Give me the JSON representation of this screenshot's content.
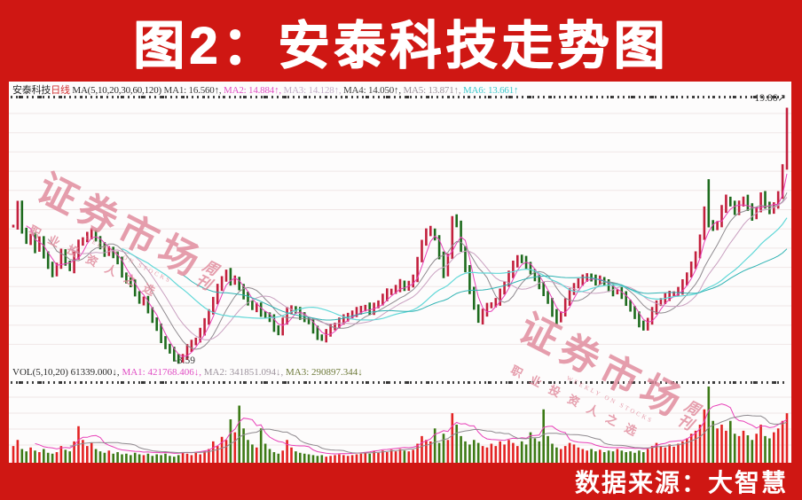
{
  "title": {
    "text": "图2：安泰科技走势图"
  },
  "source": {
    "text": "数据来源：大智慧"
  },
  "price_labels": {
    "high": "19.86↗",
    "low": "-3.59"
  },
  "watermark": {
    "main": "证券市场",
    "sub_top": "周",
    "sub_bottom": "刊",
    "eng": "WEEKLY ON STOCKS",
    "tagline": "职业投资人之选"
  },
  "indicator_header": {
    "symbol": "安泰科技",
    "period": "日线",
    "ma_label": "MA(5,10,20,30,60,120)",
    "mas": [
      {
        "name": "MA1",
        "value": "16.560",
        "dir": "↑",
        "color": "#3c3c3c"
      },
      {
        "name": "MA2",
        "value": "14.884",
        "dir": "↑",
        "color": "#e04ec4"
      },
      {
        "name": "MA3",
        "value": "14.128",
        "dir": "↑",
        "color": "#c2aec8"
      },
      {
        "name": "MA4",
        "value": "14.050",
        "dir": "↑",
        "color": "#3c3c3c"
      },
      {
        "name": "MA5",
        "value": "13.871",
        "dir": "↑",
        "color": "#9c929c"
      },
      {
        "name": "MA6",
        "value": "13.661",
        "dir": "↑",
        "color": "#3cc8cc"
      }
    ]
  },
  "volume_header": {
    "label": "VOL(5,10,20)",
    "value": "61339.000",
    "dir": "↓",
    "mas": [
      {
        "name": "MA1",
        "value": "421768.406",
        "dir": "↓",
        "color": "#e04ec4"
      },
      {
        "name": "MA2",
        "value": "341851.094",
        "dir": "↓",
        "color": "#9c929c"
      },
      {
        "name": "MA3",
        "value": "290897.344",
        "dir": "↓",
        "color": "#6e7a3a"
      }
    ]
  },
  "colors": {
    "frame_red": "#cf1713",
    "candle_up": "#c3203e",
    "candle_down": "#1e6b1e",
    "vol_up": "#e32222",
    "vol_down": "#3d7a16",
    "grid": "#f0e6e6",
    "ma_fast": "#e840b8",
    "ma_mid": "#8f8a8f",
    "ma_light": "#c9a0c0",
    "ma_cyan": "#62d8d8",
    "ma_cyan2": "#2fb3b3",
    "watermark_pink": "#e0899b"
  },
  "chart_data": {
    "type": "candlestick_with_volume",
    "title": "安泰科技走势图 (日线)",
    "high": 19.86,
    "low": 3.59,
    "ylim_price": [
      3.3,
      20.4
    ],
    "indicator_values": {
      "MA1": 16.56,
      "MA2": 14.884,
      "MA3": 14.128,
      "MA4": 14.05,
      "MA5": 13.871,
      "MA6": 13.661
    },
    "volume_values": {
      "VOL": 61339.0,
      "MA1": 421768.406,
      "MA2": 341851.094,
      "MA3": 290897.344
    },
    "closes": [
      12.29,
      13.65,
      12.05,
      11.28,
      11.58,
      10.81,
      11.46,
      10.39,
      9.8,
      9.21,
      9.8,
      10.57,
      9.98,
      9.51,
      10.39,
      11.16,
      11.46,
      11.69,
      11.87,
      11.46,
      10.98,
      10.57,
      10.81,
      10.39,
      10.1,
      9.21,
      8.74,
      8.62,
      8.03,
      7.44,
      7.55,
      6.96,
      6.25,
      5.78,
      5.07,
      4.6,
      4.3,
      3.89,
      3.71,
      4.0,
      4.48,
      4.77,
      5.07,
      5.54,
      6.13,
      6.84,
      7.55,
      8.32,
      8.91,
      9.33,
      8.74,
      8.91,
      8.32,
      7.85,
      7.44,
      7.02,
      7.14,
      6.73,
      6.55,
      6.37,
      5.78,
      5.48,
      6.25,
      6.84,
      7.02,
      6.84,
      6.55,
      6.37,
      6.13,
      5.66,
      5.25,
      5.07,
      5.48,
      5.78,
      5.96,
      6.25,
      6.37,
      6.55,
      6.73,
      6.84,
      6.96,
      7.14,
      6.84,
      7.14,
      7.44,
      7.73,
      8.03,
      8.15,
      8.32,
      8.62,
      8.32,
      8.62,
      8.91,
      10.1,
      11.28,
      11.87,
      12.05,
      11.46,
      10.39,
      9.21,
      10.39,
      12.76,
      12.46,
      10.81,
      9.51,
      8.2,
      7.14,
      6.25,
      6.73,
      7.14,
      7.32,
      7.44,
      8.03,
      8.62,
      9.21,
      9.8,
      10.27,
      10.1,
      9.8,
      9.39,
      8.91,
      8.5,
      8.03,
      7.44,
      6.73,
      6.25,
      6.73,
      7.44,
      8.03,
      8.5,
      8.74,
      8.91,
      9.09,
      8.91,
      8.74,
      8.91,
      8.62,
      8.32,
      8.03,
      8.15,
      7.85,
      7.44,
      6.96,
      6.55,
      6.07,
      5.78,
      6.25,
      6.84,
      7.32,
      7.55,
      7.73,
      7.91,
      8.03,
      8.15,
      8.62,
      9.21,
      9.8,
      10.39,
      11.58,
      13.35,
      12.46,
      12.17,
      12.46,
      13.35,
      14.06,
      13.65,
      13.23,
      13.65,
      14.06,
      13.47,
      12.88,
      13.35,
      14.24,
      13.65,
      13.23,
      13.65,
      14.24,
      16.01,
      18.67
    ],
    "volume_rel": [
      0.22,
      0.3,
      0.18,
      0.15,
      0.2,
      0.16,
      0.14,
      0.18,
      0.13,
      0.12,
      0.14,
      0.22,
      0.17,
      0.15,
      0.28,
      0.48,
      0.3,
      0.22,
      0.26,
      0.18,
      0.15,
      0.13,
      0.16,
      0.12,
      0.14,
      0.11,
      0.12,
      0.1,
      0.13,
      0.11,
      0.1,
      0.12,
      0.09,
      0.11,
      0.1,
      0.12,
      0.09,
      0.08,
      0.1,
      0.14,
      0.12,
      0.1,
      0.13,
      0.11,
      0.15,
      0.18,
      0.28,
      0.22,
      0.34,
      0.3,
      0.57,
      0.4,
      0.75,
      0.45,
      0.3,
      0.24,
      0.2,
      0.45,
      0.25,
      0.18,
      0.14,
      0.12,
      0.16,
      0.3,
      0.2,
      0.15,
      0.13,
      0.12,
      0.11,
      0.1,
      0.09,
      0.1,
      0.08,
      0.09,
      0.1,
      0.11,
      0.1,
      0.09,
      0.1,
      0.11,
      0.12,
      0.14,
      0.12,
      0.15,
      0.13,
      0.16,
      0.14,
      0.17,
      0.15,
      0.18,
      0.16,
      0.15,
      0.17,
      0.25,
      0.35,
      0.3,
      0.28,
      0.45,
      0.26,
      0.38,
      0.3,
      0.65,
      0.5,
      0.35,
      0.28,
      0.24,
      0.3,
      0.26,
      0.22,
      0.2,
      0.25,
      0.22,
      0.28,
      0.24,
      0.3,
      0.26,
      0.22,
      0.28,
      0.24,
      0.4,
      0.32,
      0.28,
      0.7,
      0.35,
      0.25,
      0.2,
      0.18,
      0.22,
      0.26,
      0.24,
      0.2,
      0.18,
      0.16,
      0.18,
      0.15,
      0.17,
      0.14,
      0.16,
      0.15,
      0.18,
      0.16,
      0.14,
      0.15,
      0.13,
      0.16,
      0.14,
      0.18,
      0.22,
      0.26,
      0.22,
      0.2,
      0.24,
      0.21,
      0.25,
      0.28,
      0.32,
      0.38,
      0.42,
      0.5,
      0.7,
      1.0,
      0.55,
      0.45,
      0.5,
      0.42,
      0.55,
      0.38,
      0.35,
      0.42,
      0.36,
      0.3,
      0.38,
      0.5,
      0.35,
      0.32,
      0.4,
      0.45,
      0.55,
      0.65
    ],
    "spikes": [
      {
        "index": 39,
        "low": 3.59
      },
      {
        "index": 101,
        "high": 12.94
      },
      {
        "index": 160,
        "high": 15.3
      },
      {
        "index": 178,
        "high": 19.86
      }
    ]
  }
}
